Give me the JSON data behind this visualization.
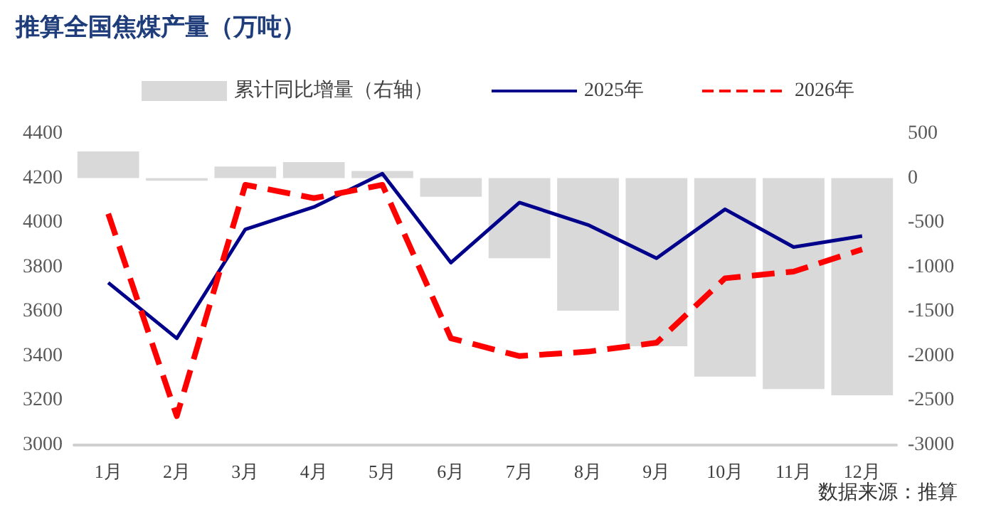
{
  "chart_data": {
    "type": "line",
    "title": "推算全国焦煤产量（万吨）",
    "categories": [
      "1月",
      "2月",
      "3月",
      "4月",
      "5月",
      "6月",
      "7月",
      "8月",
      "9月",
      "10月",
      "11月",
      "12月"
    ],
    "series": [
      {
        "name": "累计同比增量（右轴）",
        "type": "bar",
        "axis": "y2",
        "color": "#d9d9d9",
        "values": [
          300,
          -30,
          130,
          180,
          80,
          -210,
          -900,
          -1490,
          -1890,
          -2230,
          -2370,
          -2440
        ]
      },
      {
        "name": "2025年",
        "color": "#00008b",
        "line_style": "solid",
        "values": [
          3730,
          3480,
          3970,
          4070,
          4220,
          3820,
          4090,
          3990,
          3840,
          4060,
          3890,
          3940
        ]
      },
      {
        "name": "2026年",
        "color": "#ff0000",
        "line_style": "dashed",
        "values": [
          4040,
          3130,
          4170,
          4110,
          4170,
          3480,
          3400,
          3420,
          3460,
          3750,
          3780,
          3880
        ]
      }
    ],
    "ylim": [
      3000,
      4400
    ],
    "yticks": [
      3000,
      3200,
      3400,
      3600,
      3800,
      4000,
      4200,
      4400
    ],
    "y2lim": [
      -3000,
      500
    ],
    "y2ticks": [
      -3000,
      -2500,
      -2000,
      -1500,
      -1000,
      -500,
      0,
      500
    ],
    "grid": false,
    "legend": "top",
    "marker": "none",
    "annotations": [
      "数据来源：推算"
    ]
  }
}
